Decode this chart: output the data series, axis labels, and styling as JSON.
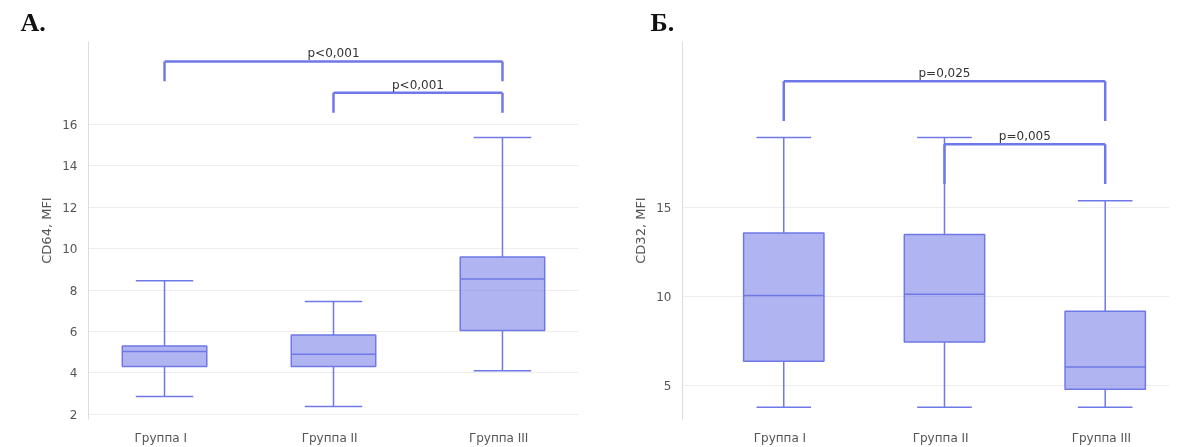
{
  "chart_data": [
    {
      "type": "box",
      "title": "А.",
      "ylabel": "CD64, MFI",
      "categories": [
        "Группа   I",
        "Группа   II",
        "Группа   III"
      ],
      "series": [
        {
          "color": "#6f78e6",
          "boxes": [
            {
              "low": 2.86,
              "q1": 4.31,
              "median": 5.03,
              "q3": 5.3,
              "high": 8.45
            },
            {
              "low": 2.38,
              "q1": 4.31,
              "median": 4.9,
              "q3": 5.83,
              "high": 7.45
            },
            {
              "low": 4.1,
              "q1": 6.05,
              "median": 8.53,
              "q3": 9.6,
              "high": 15.37
            }
          ]
        }
      ],
      "ylim": [
        1.75,
        20.0
      ],
      "yticks": [
        2,
        4,
        6,
        8,
        10,
        12,
        14,
        16
      ],
      "grid": "y",
      "annotations": [
        "p<0,001",
        "p<0,001"
      ]
    },
    {
      "type": "box",
      "title": "Б.",
      "ylabel": "CD32, MFI",
      "categories": [
        "Группа   I",
        "Группа   II",
        "Группа   III"
      ],
      "series": [
        {
          "color": "#6f78e6",
          "boxes": [
            {
              "low": 3.79,
              "q1": 6.37,
              "median": 10.05,
              "q3": 13.56,
              "high": 18.92
            },
            {
              "low": 3.79,
              "q1": 7.44,
              "median": 10.13,
              "q3": 13.48,
              "high": 18.92
            },
            {
              "low": 3.79,
              "q1": 4.79,
              "median": 6.04,
              "q3": 9.17,
              "high": 15.37
            }
          ]
        }
      ],
      "ylim": [
        3.1,
        24.3
      ],
      "yticks": [
        5,
        10,
        15
      ],
      "grid": "y",
      "annotations": [
        "p=0,025",
        "p=0,005"
      ]
    }
  ]
}
